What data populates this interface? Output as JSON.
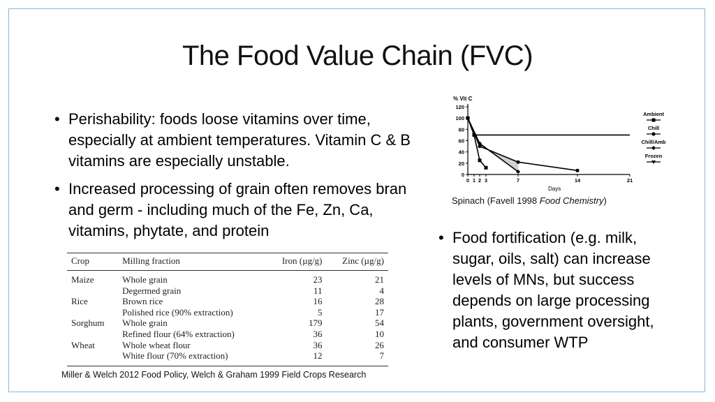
{
  "slide": {
    "title": "The Food Value Chain (FVC)",
    "bullets": [
      "Perishability: foods loose vitamins over time, especially at ambient temperatures. Vitamin C & B vitamins are especially unstable.",
      "Increased processing of grain often removes bran and germ - including much of the Fe, Zn, Ca, vitamins, phytate, and protein"
    ],
    "right_bullet": "Food fortification (e.g. milk, sugar, oils, salt) can increase levels of MNs, but success depends on large processing plants, government oversight, and consumer WTP",
    "table_caption": "Miller & Welch 2012 Food Policy, Welch & Graham 1999 Field Crops Research",
    "chart_caption_prefix": "Spinach (Favell 1998 ",
    "chart_caption_italic": "Food Chemistry",
    "chart_caption_suffix": ")"
  },
  "table": {
    "headers": [
      "Crop",
      "Milling fraction",
      "Iron (µg/g)",
      "Zinc (µg/g)"
    ],
    "rows": [
      {
        "crop": "Maize",
        "fraction": "Whole grain",
        "iron": "23",
        "zinc": "21"
      },
      {
        "crop": "",
        "fraction": "Degermed grain",
        "iron": "11",
        "zinc": "4"
      },
      {
        "crop": "Rice",
        "fraction": "Brown rice",
        "iron": "16",
        "zinc": "28"
      },
      {
        "crop": "",
        "fraction": "Polished rice (90% extraction)",
        "iron": "5",
        "zinc": "17"
      },
      {
        "crop": "Sorghum",
        "fraction": "Whole grain",
        "iron": "179",
        "zinc": "54"
      },
      {
        "crop": "",
        "fraction": "Refined flour (64% extraction)",
        "iron": "36",
        "zinc": "10"
      },
      {
        "crop": "Wheat",
        "fraction": "Whole wheat flour",
        "iron": "36",
        "zinc": "26"
      },
      {
        "crop": "",
        "fraction": "White flour (70% extraction)",
        "iron": "12",
        "zinc": "7"
      }
    ]
  },
  "chart_data": {
    "type": "line",
    "title": "% Vit C",
    "xlabel": "Days",
    "ylabel": "% Vit C",
    "xlim": [
      0,
      21
    ],
    "ylim": [
      0,
      120
    ],
    "x_ticks": [
      0,
      1,
      2,
      3,
      7,
      14,
      21
    ],
    "y_ticks": [
      0,
      20,
      40,
      60,
      80,
      100,
      120
    ],
    "legend_position": "right",
    "series": [
      {
        "name": "Ambient",
        "x": [
          0,
          1,
          2,
          3
        ],
        "y": [
          100,
          70,
          25,
          12
        ]
      },
      {
        "name": "Chill",
        "x": [
          0,
          2,
          7,
          14
        ],
        "y": [
          100,
          50,
          22,
          7
        ]
      },
      {
        "name": "Chill/Amb",
        "x": [
          0,
          2,
          7
        ],
        "y": [
          100,
          55,
          5
        ]
      },
      {
        "name": "Frozen",
        "x": [
          0,
          1,
          21
        ],
        "y": [
          100,
          70,
          70
        ]
      }
    ]
  }
}
